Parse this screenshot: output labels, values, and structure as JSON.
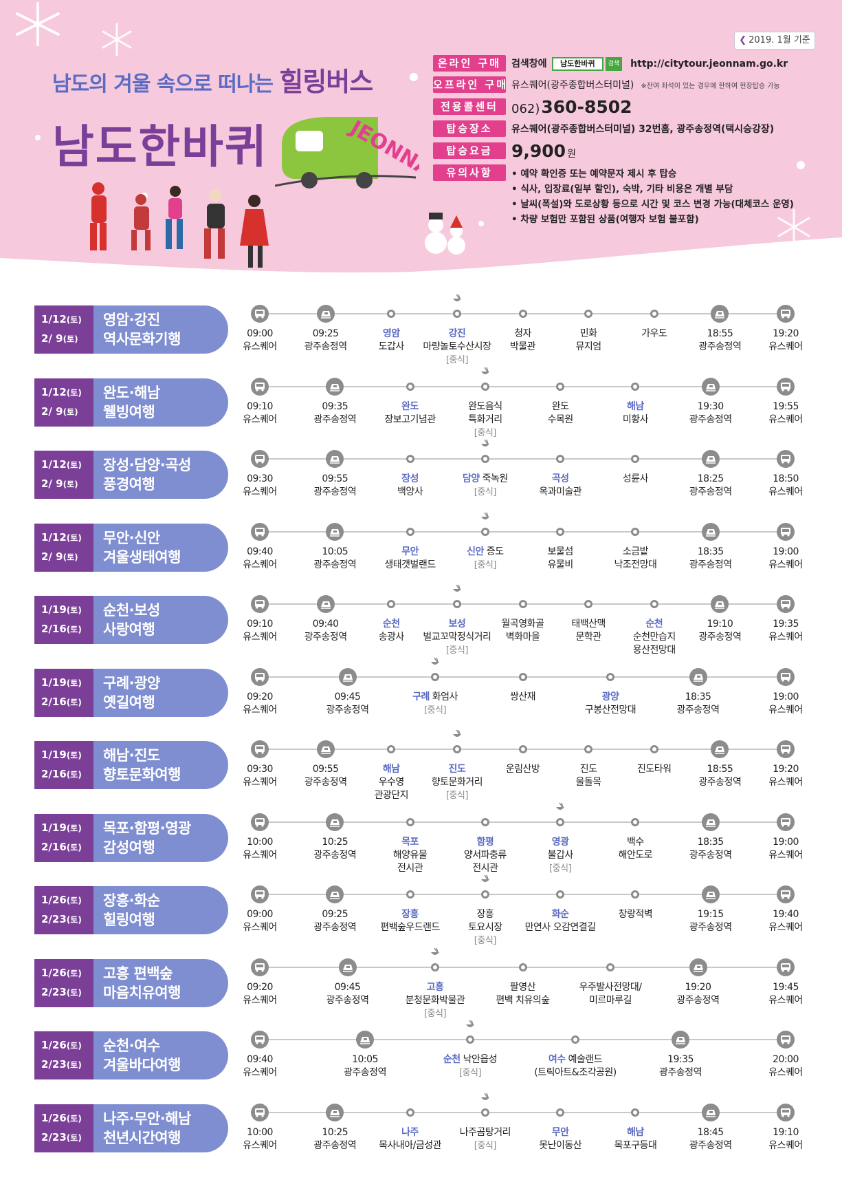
{
  "header": {
    "date_badge": "2019. 1월 기준",
    "subtitle_pre": "남도의 겨울 속으로 떠나는 ",
    "subtitle_big": "힐링버스",
    "title": "남도한바퀴",
    "bus_logo": "JEONNAM",
    "colors": {
      "purple": "#7b3f98",
      "pink": "#e2408d",
      "blue": "#5b6bc4",
      "green": "#46a640"
    }
  },
  "info": {
    "online": {
      "label": "온라인 구매",
      "pre": "검색창에",
      "search": "남도한바퀴",
      "btn": "검색",
      "url": "http://citytour.jeonnam.go.kr"
    },
    "offline": {
      "label": "오프라인 구매",
      "value": "유스퀘어(광주종합버스터미널)",
      "note": "※잔여 좌석이 있는 경우에 한하여 현장탑승 가능"
    },
    "call": {
      "label": "전용콜센터",
      "pre": "062)",
      "phone": "360-8502"
    },
    "board": {
      "label": "탑승장소",
      "value": "유스퀘어(광주종합버스터미널) 32번홈, 광주송정역(택시승강장)"
    },
    "fare": {
      "label": "탑승요금",
      "value": "9,900",
      "unit": "원"
    },
    "notes": {
      "label": "유의사항",
      "items": [
        "예약 확인증 또는 예약문자 제시 후 탑승",
        "식사, 입장료(일부 할인), 숙박, 기타 비용은 개별 부담",
        "날씨(폭설)와 도로상황 등으로 시간 및 코스 변경 가능(대체코스 운영)",
        "차량 보험만 포함된 상품(여행자 보험 불포함)"
      ]
    }
  },
  "tours": [
    {
      "dates": [
        {
          "d": "1/12",
          "w": "(토)"
        },
        {
          "d": "2/ 9",
          "w": "(토)"
        }
      ],
      "title": [
        "영암·강진",
        "역사문화기행"
      ],
      "stops": [
        {
          "m": "bus",
          "time": "09:00",
          "l1": "유스퀘어"
        },
        {
          "m": "train",
          "time": "09:25",
          "l1": "광주송정역"
        },
        {
          "m": "dot",
          "region": "영암",
          "l1": "도갑사"
        },
        {
          "m": "dot",
          "meal": true,
          "region": "강진",
          "l1": "마량놀토수산시장",
          "lunch": "[중식]"
        },
        {
          "m": "dot",
          "time": "청자",
          "l1": "박물관"
        },
        {
          "m": "dot",
          "time": "민화",
          "l1": "뮤지엄"
        },
        {
          "m": "dot",
          "time": "가우도"
        },
        {
          "m": "train",
          "time": "18:55",
          "l1": "광주송정역"
        },
        {
          "m": "bus",
          "time": "19:20",
          "l1": "유스퀘어"
        }
      ]
    },
    {
      "dates": [
        {
          "d": "1/12",
          "w": "(토)"
        },
        {
          "d": "2/ 9",
          "w": "(토)"
        }
      ],
      "title": [
        "완도·해남",
        "웰빙여행"
      ],
      "stops": [
        {
          "m": "bus",
          "time": "09:10",
          "l1": "유스퀘어"
        },
        {
          "m": "train",
          "time": "09:35",
          "l1": "광주송정역"
        },
        {
          "m": "dot",
          "region": "완도",
          "l1": "장보고기념관"
        },
        {
          "m": "dot",
          "meal": true,
          "time": "완도음식",
          "l1": "특화거리",
          "lunch": "[중식]"
        },
        {
          "m": "dot",
          "time": "완도",
          "l1": "수목원"
        },
        {
          "m": "dot",
          "region": "해남",
          "l1": "미황사"
        },
        {
          "m": "train",
          "time": "19:30",
          "l1": "광주송정역"
        },
        {
          "m": "bus",
          "time": "19:55",
          "l1": "유스퀘어"
        }
      ]
    },
    {
      "dates": [
        {
          "d": "1/12",
          "w": "(토)"
        },
        {
          "d": "2/ 9",
          "w": "(토)"
        }
      ],
      "title": [
        "장성·담양·곡성",
        "풍경여행"
      ],
      "stops": [
        {
          "m": "bus",
          "time": "09:30",
          "l1": "유스퀘어"
        },
        {
          "m": "train",
          "time": "09:55",
          "l1": "광주송정역"
        },
        {
          "m": "dot",
          "region": "장성",
          "l1": "백양사"
        },
        {
          "m": "dot",
          "meal": true,
          "region": "담양",
          "regionRest": " 죽녹원",
          "lunch": "[중식]"
        },
        {
          "m": "dot",
          "region": "곡성",
          "l1": "옥과미술관"
        },
        {
          "m": "dot",
          "time": "성륜사"
        },
        {
          "m": "train",
          "time": "18:25",
          "l1": "광주송정역"
        },
        {
          "m": "bus",
          "time": "18:50",
          "l1": "유스퀘어"
        }
      ]
    },
    {
      "dates": [
        {
          "d": "1/12",
          "w": "(토)"
        },
        {
          "d": "2/ 9",
          "w": "(토)"
        }
      ],
      "title": [
        "무안·신안",
        "겨울생태여행"
      ],
      "stops": [
        {
          "m": "bus",
          "time": "09:40",
          "l1": "유스퀘어"
        },
        {
          "m": "train",
          "time": "10:05",
          "l1": "광주송정역"
        },
        {
          "m": "dot",
          "region": "무안",
          "l1": "생태갯벌랜드"
        },
        {
          "m": "dot",
          "meal": true,
          "region": "신안",
          "regionRest": " 증도",
          "lunch": "[중식]"
        },
        {
          "m": "dot",
          "time": "보물섬",
          "l1": "유물비"
        },
        {
          "m": "dot",
          "time": "소금밭",
          "l1": "낙조전망대"
        },
        {
          "m": "train",
          "time": "18:35",
          "l1": "광주송정역"
        },
        {
          "m": "bus",
          "time": "19:00",
          "l1": "유스퀘어"
        }
      ]
    },
    {
      "dates": [
        {
          "d": "1/19",
          "w": "(토)"
        },
        {
          "d": "2/16",
          "w": "(토)"
        }
      ],
      "title": [
        "순천·보성",
        "사랑여행"
      ],
      "stops": [
        {
          "m": "bus",
          "time": "09:10",
          "l1": "유스퀘어"
        },
        {
          "m": "train",
          "time": "09:40",
          "l1": "광주송정역"
        },
        {
          "m": "dot",
          "region": "순천",
          "l1": "송광사"
        },
        {
          "m": "dot",
          "meal": true,
          "region": "보성",
          "l1": "벌교꼬막정식거리",
          "lunch": "[중식]"
        },
        {
          "m": "dot",
          "time": "월곡영화골",
          "l1": "벽화마을"
        },
        {
          "m": "dot",
          "time": "태백산맥",
          "l1": "문학관"
        },
        {
          "m": "dot",
          "region": "순천",
          "l1": "순천만습지",
          "l2": "용산전망대"
        },
        {
          "m": "train",
          "time": "19:10",
          "l1": "광주송정역"
        },
        {
          "m": "bus",
          "time": "19:35",
          "l1": "유스퀘어"
        }
      ]
    },
    {
      "dates": [
        {
          "d": "1/19",
          "w": "(토)"
        },
        {
          "d": "2/16",
          "w": "(토)"
        }
      ],
      "title": [
        "구례·광양",
        "옛길여행"
      ],
      "stops": [
        {
          "m": "bus",
          "time": "09:20",
          "l1": "유스퀘어"
        },
        {
          "m": "train",
          "time": "09:45",
          "l1": "광주송정역"
        },
        {
          "m": "dot",
          "meal": true,
          "region": "구례",
          "regionRest": " 화엄사",
          "lunch": "[중식]"
        },
        {
          "m": "dot",
          "time": "쌍산재"
        },
        {
          "m": "dot",
          "region": "광양",
          "l1": "구봉산전망대"
        },
        {
          "m": "train",
          "time": "18:35",
          "l1": "광주송정역"
        },
        {
          "m": "bus",
          "time": "19:00",
          "l1": "유스퀘어"
        }
      ]
    },
    {
      "dates": [
        {
          "d": "1/19",
          "w": "(토)"
        },
        {
          "d": "2/16",
          "w": "(토)"
        }
      ],
      "title": [
        "해남·진도",
        "향토문화여행"
      ],
      "stops": [
        {
          "m": "bus",
          "time": "09:30",
          "l1": "유스퀘어"
        },
        {
          "m": "train",
          "time": "09:55",
          "l1": "광주송정역"
        },
        {
          "m": "dot",
          "region": "해남",
          "l1": "우수영",
          "l2": "관광단지"
        },
        {
          "m": "dot",
          "meal": true,
          "region": "진도",
          "l1": "향토문화거리",
          "lunch": "[중식]"
        },
        {
          "m": "dot",
          "time": "운림산방"
        },
        {
          "m": "dot",
          "time": "진도",
          "l1": "울돌목"
        },
        {
          "m": "dot",
          "time": "진도타워"
        },
        {
          "m": "train",
          "time": "18:55",
          "l1": "광주송정역"
        },
        {
          "m": "bus",
          "time": "19:20",
          "l1": "유스퀘어"
        }
      ]
    },
    {
      "dates": [
        {
          "d": "1/19",
          "w": "(토)"
        },
        {
          "d": "2/16",
          "w": "(토)"
        }
      ],
      "title": [
        "목포·함평·영광",
        "감성여행"
      ],
      "stops": [
        {
          "m": "bus",
          "time": "10:00",
          "l1": "유스퀘어"
        },
        {
          "m": "train",
          "time": "10:25",
          "l1": "광주송정역"
        },
        {
          "m": "dot",
          "region": "목포",
          "l1": "해양유물",
          "l2": "전시관"
        },
        {
          "m": "dot",
          "region": "함평",
          "l1": "양서파충류",
          "l2": "전시관"
        },
        {
          "m": "dot",
          "meal": true,
          "region": "영광",
          "l1": "불갑사",
          "lunch": "[중식]"
        },
        {
          "m": "dot",
          "time": "백수",
          "l1": "해안도로"
        },
        {
          "m": "train",
          "time": "18:35",
          "l1": "광주송정역"
        },
        {
          "m": "bus",
          "time": "19:00",
          "l1": "유스퀘어"
        }
      ]
    },
    {
      "dates": [
        {
          "d": "1/26",
          "w": "(토)"
        },
        {
          "d": "2/23",
          "w": "(토)"
        }
      ],
      "title": [
        "장흥·화순",
        "힐링여행"
      ],
      "stops": [
        {
          "m": "bus",
          "time": "09:00",
          "l1": "유스퀘어"
        },
        {
          "m": "train",
          "time": "09:25",
          "l1": "광주송정역"
        },
        {
          "m": "dot",
          "region": "장흥",
          "l1": "편백숲우드랜드"
        },
        {
          "m": "dot",
          "meal": true,
          "time": "장흥",
          "l1": "토요시장",
          "lunch": "[중식]"
        },
        {
          "m": "dot",
          "region": "화순",
          "l1": "만연사 오감연결길"
        },
        {
          "m": "dot",
          "time": "창랑적벽"
        },
        {
          "m": "train",
          "time": "19:15",
          "l1": "광주송정역"
        },
        {
          "m": "bus",
          "time": "19:40",
          "l1": "유스퀘어"
        }
      ]
    },
    {
      "dates": [
        {
          "d": "1/26",
          "w": "(토)"
        },
        {
          "d": "2/23",
          "w": "(토)"
        }
      ],
      "title": [
        "고흥 편백숲",
        "마음치유여행"
      ],
      "stops": [
        {
          "m": "bus",
          "time": "09:20",
          "l1": "유스퀘어"
        },
        {
          "m": "train",
          "time": "09:45",
          "l1": "광주송정역"
        },
        {
          "m": "dot",
          "meal": true,
          "region": "고흥",
          "l1": "분청문화박물관",
          "lunch": "[중식]"
        },
        {
          "m": "dot",
          "time": "팔영산",
          "l1": "편백 치유의숲"
        },
        {
          "m": "dot",
          "time": "우주발사전망대/",
          "l1": "미르마루길"
        },
        {
          "m": "train",
          "time": "19:20",
          "l1": "광주송정역"
        },
        {
          "m": "bus",
          "time": "19:45",
          "l1": "유스퀘어"
        }
      ]
    },
    {
      "dates": [
        {
          "d": "1/26",
          "w": "(토)"
        },
        {
          "d": "2/23",
          "w": "(토)"
        }
      ],
      "title": [
        "순천·여수",
        "겨울바다여행"
      ],
      "stops": [
        {
          "m": "bus",
          "time": "09:40",
          "l1": "유스퀘어"
        },
        {
          "m": "train",
          "time": "10:05",
          "l1": "광주송정역"
        },
        {
          "m": "dot",
          "meal": true,
          "region": "순천",
          "regionRest": " 낙안읍성",
          "lunch": "[중식]"
        },
        {
          "m": "dot",
          "region": "여수",
          "regionRest": " 예술랜드",
          "l1": "(트릭아트&조각공원)"
        },
        {
          "m": "train",
          "time": "19:35",
          "l1": "광주송정역"
        },
        {
          "m": "bus",
          "time": "20:00",
          "l1": "유스퀘어"
        }
      ]
    },
    {
      "dates": [
        {
          "d": "1/26",
          "w": "(토)"
        },
        {
          "d": "2/23",
          "w": "(토)"
        }
      ],
      "title": [
        "나주·무안·해남",
        "천년시간여행"
      ],
      "stops": [
        {
          "m": "bus",
          "time": "10:00",
          "l1": "유스퀘어"
        },
        {
          "m": "train",
          "time": "10:25",
          "l1": "광주송정역"
        },
        {
          "m": "dot",
          "region": "나주",
          "l1": "목사내아/금성관"
        },
        {
          "m": "dot",
          "meal": true,
          "time": "나주곰탕거리",
          "lunch": "[중식]"
        },
        {
          "m": "dot",
          "region": "무안",
          "l1": "못난이동산"
        },
        {
          "m": "dot",
          "region": "해남",
          "l1": "목포구등대"
        },
        {
          "m": "train",
          "time": "18:45",
          "l1": "광주송정역"
        },
        {
          "m": "bus",
          "time": "19:10",
          "l1": "유스퀘어"
        }
      ]
    }
  ]
}
